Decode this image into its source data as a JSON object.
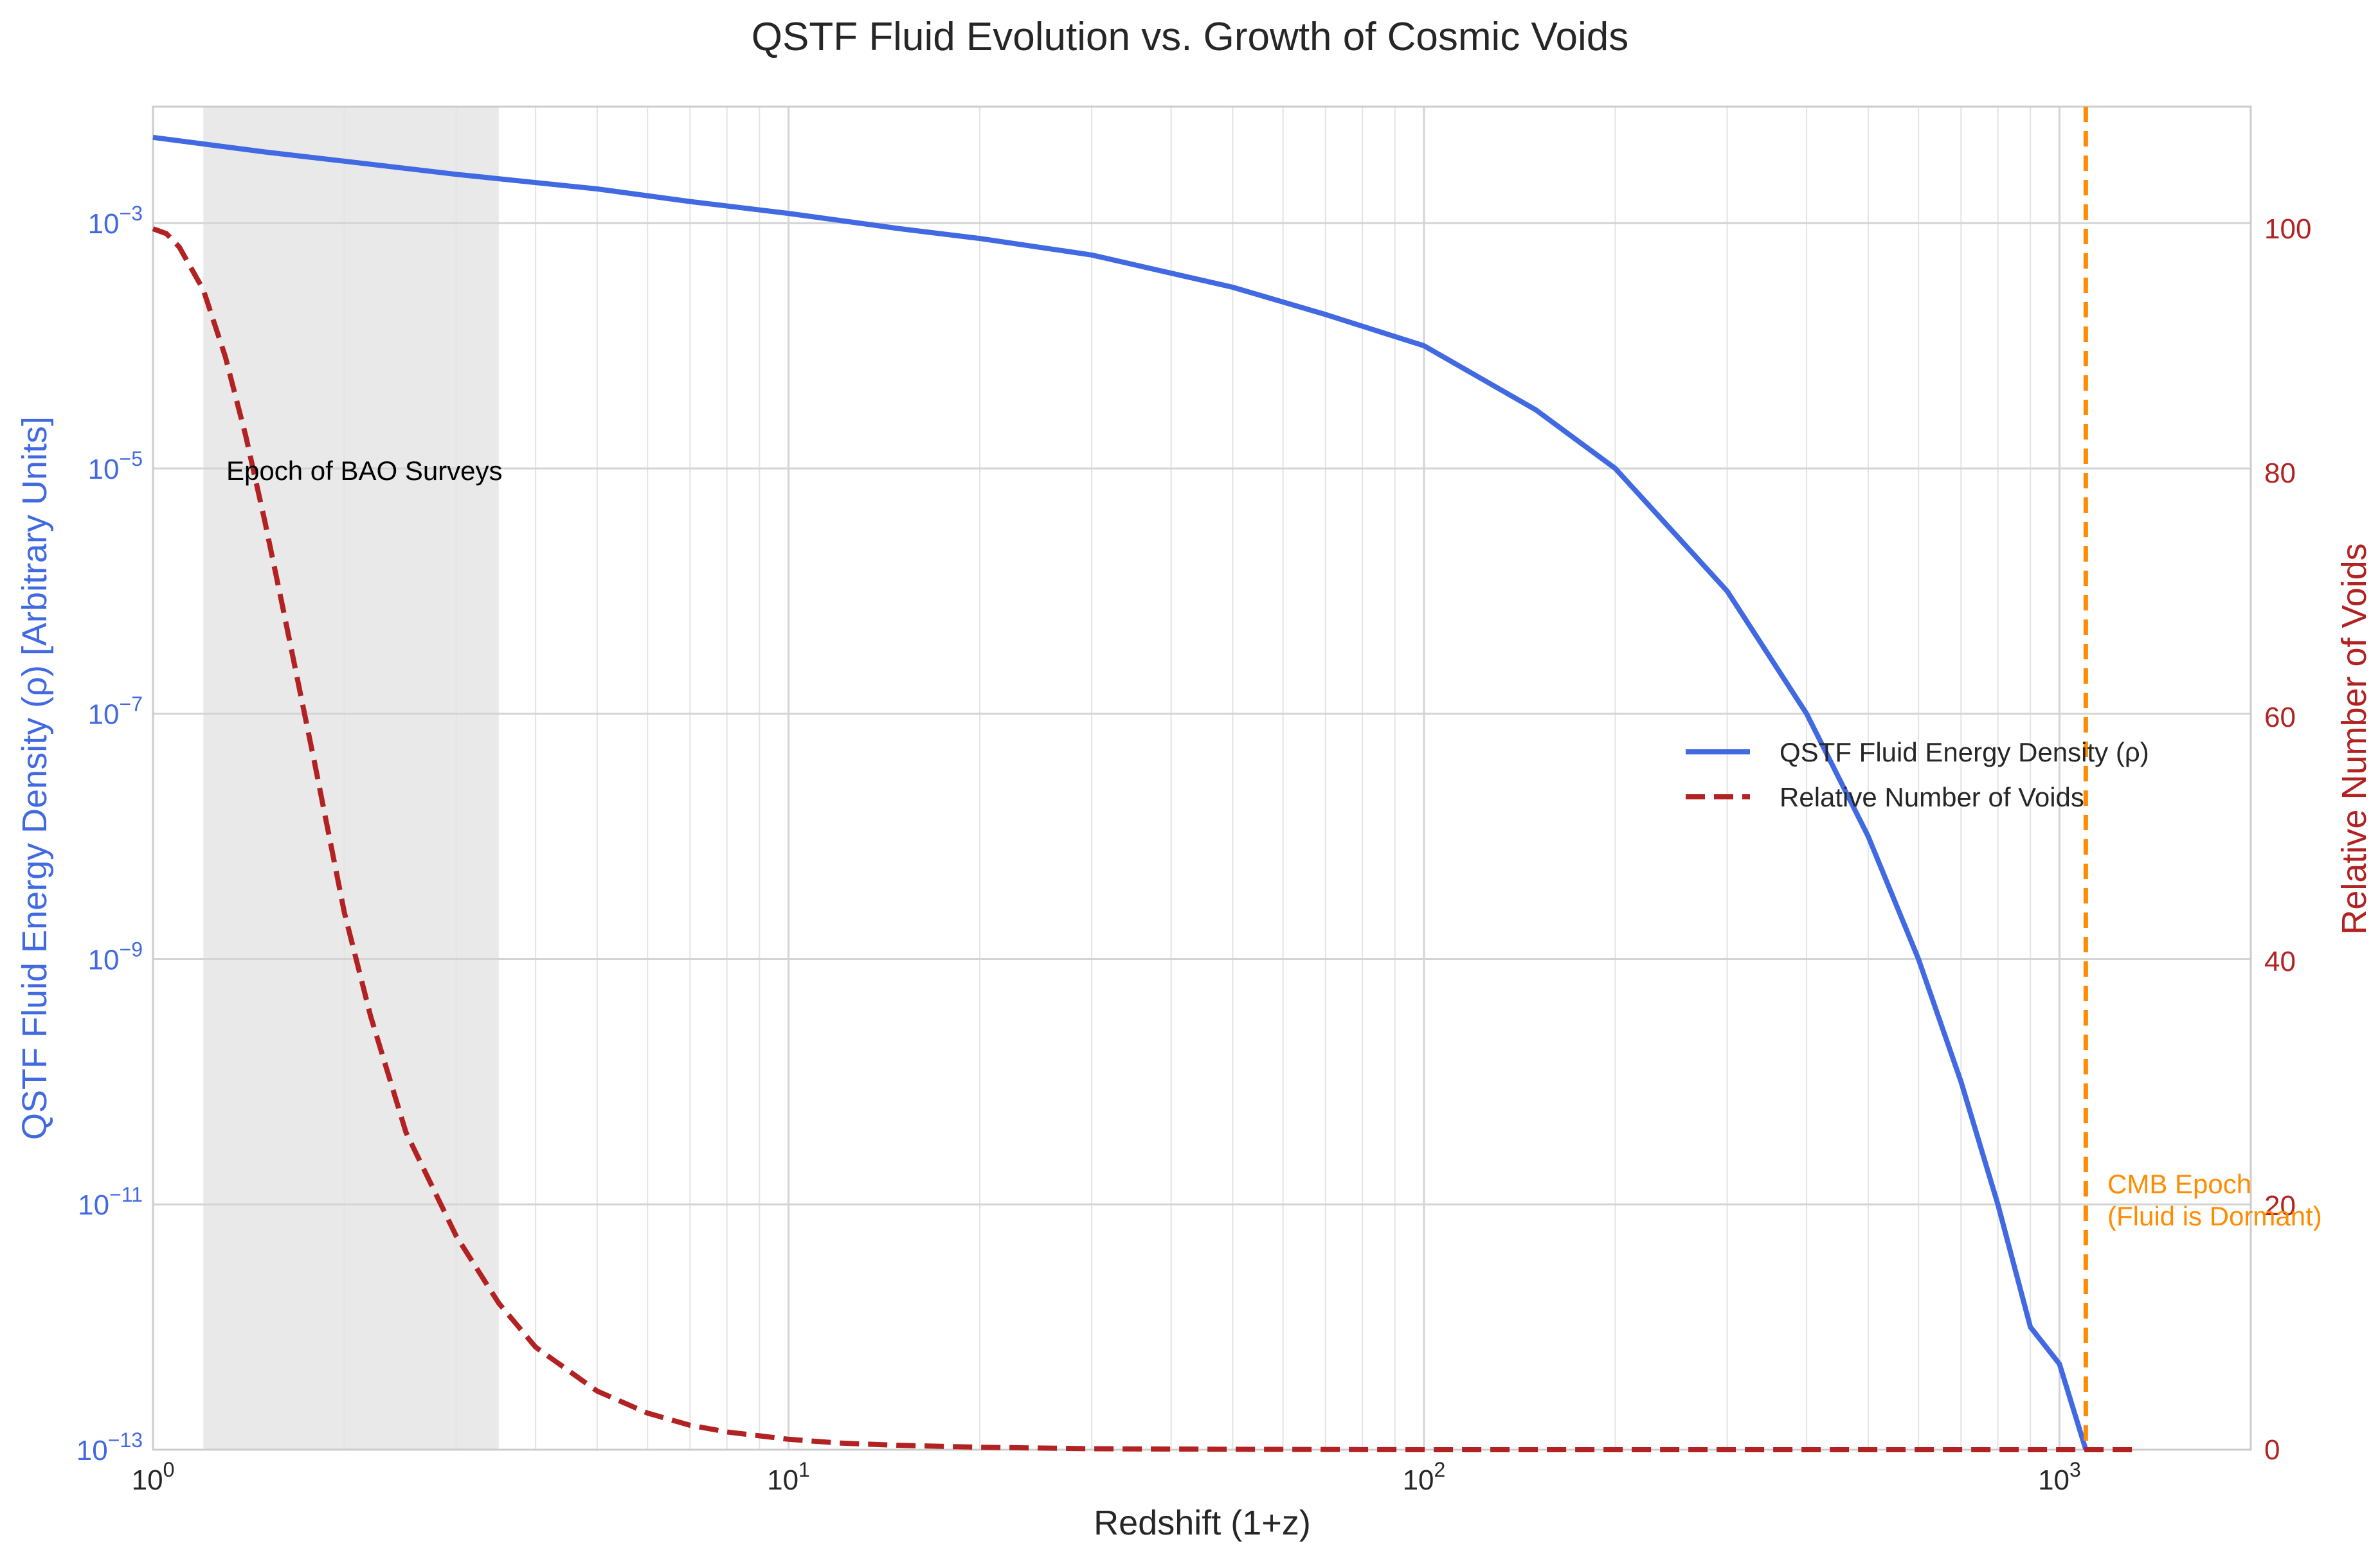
{
  "chart_data": {
    "type": "line",
    "title": "QSTF Fluid Evolution vs. Growth of Cosmic Voids",
    "xlabel": "Redshift (1+z)",
    "ylabel_left": "QSTF Fluid Energy Density (ρ) [Arbitrary Units]",
    "ylabel_right": "Relative Number of Voids",
    "x_scale": "log",
    "xlim": [
      1,
      2000
    ],
    "y_left_scale": "log",
    "y_left_lim": [
      1e-13,
      0.0089
    ],
    "y_right_lim": [
      0,
      110
    ],
    "x_ticks": [
      {
        "base": "10",
        "exp": "0"
      },
      {
        "base": "10",
        "exp": "1"
      },
      {
        "base": "10",
        "exp": "2"
      },
      {
        "base": "10",
        "exp": "3"
      }
    ],
    "y_left_ticks": [
      {
        "base": "10",
        "exp": "−13"
      },
      {
        "base": "10",
        "exp": "−11"
      },
      {
        "base": "10",
        "exp": "−9"
      },
      {
        "base": "10",
        "exp": "−7"
      },
      {
        "base": "10",
        "exp": "−5"
      },
      {
        "base": "10",
        "exp": "−3"
      }
    ],
    "y_right_ticks": [
      "0",
      "20",
      "40",
      "60",
      "80",
      "100"
    ],
    "grid": true,
    "legend_position": "center-right",
    "series": [
      {
        "name": "QSTF Fluid Energy Density (ρ)",
        "axis": "left",
        "color": "#4169e1",
        "style": "solid",
        "x": [
          1,
          1.5,
          2,
          3,
          5,
          7,
          10,
          15,
          20,
          30,
          50,
          70,
          100,
          150,
          200,
          300,
          400,
          500,
          600,
          700,
          800,
          900,
          1000,
          1100
        ],
        "y": [
          0.005,
          0.0038,
          0.0032,
          0.0025,
          0.0019,
          0.0015,
          0.0012,
          0.0009,
          0.00075,
          0.00055,
          0.0003,
          0.00018,
          0.0001,
          3e-05,
          1e-05,
          1e-06,
          1e-07,
          1e-08,
          1e-09,
          1e-10,
          1e-11,
          1e-12,
          5e-13,
          1e-13
        ]
      },
      {
        "name": "Relative Number of Voids",
        "axis": "right",
        "color": "#b22222",
        "style": "dashed",
        "x": [
          1,
          1.05,
          1.1,
          1.2,
          1.3,
          1.4,
          1.5,
          1.6,
          1.8,
          2,
          2.2,
          2.5,
          3,
          3.5,
          4,
          5,
          6,
          7,
          8,
          10,
          12,
          15,
          20,
          30,
          50,
          100,
          200,
          500,
          1000,
          1300
        ],
        "y": [
          100,
          99.6,
          98.5,
          95,
          89.5,
          83,
          76,
          69,
          56,
          44,
          35.5,
          26,
          17.5,
          12,
          8.4,
          4.8,
          3.0,
          2.0,
          1.45,
          0.85,
          0.55,
          0.35,
          0.2,
          0.08,
          0.03,
          0,
          0,
          0,
          0,
          0
        ]
      }
    ],
    "annotations": [
      {
        "text": "Epoch of BAO Surveys",
        "shaded_x_range": [
          1.2,
          3.5
        ]
      },
      {
        "text_lines": [
          "CMB Epoch",
          "(Fluid is Dormant)"
        ],
        "vline_x": 1100,
        "color": "#ff8c00"
      }
    ]
  }
}
